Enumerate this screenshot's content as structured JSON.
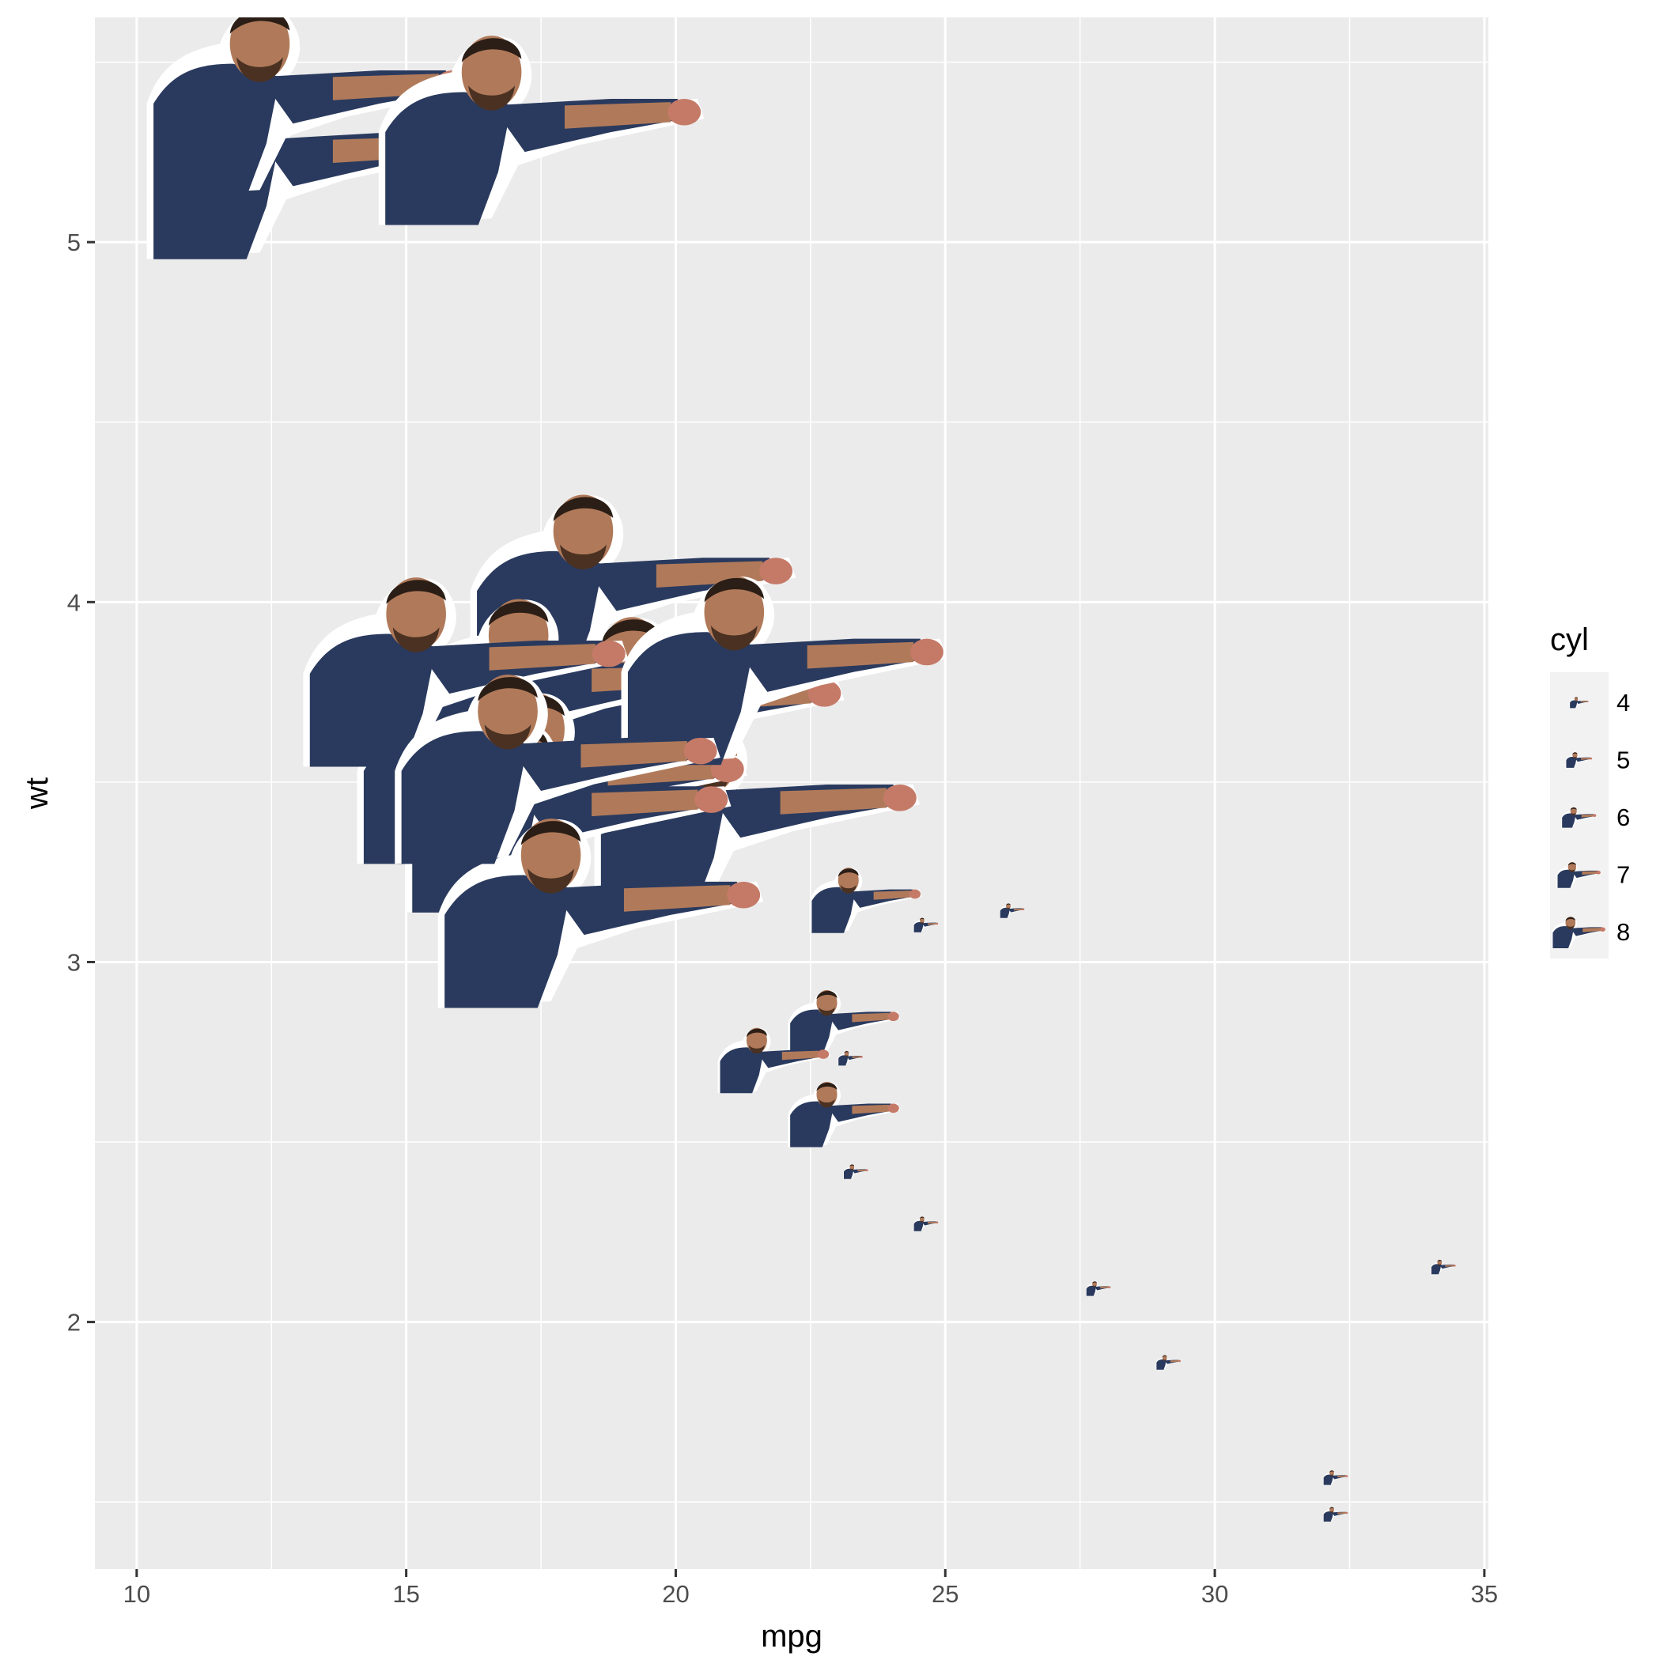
{
  "chart_data": {
    "type": "scatter",
    "title": "",
    "xlabel": "mpg",
    "ylabel": "wt",
    "xlim": [
      9.225,
      35.075
    ],
    "ylim": [
      1.31365,
      5.62435
    ],
    "x_ticks": [
      10,
      15,
      20,
      25,
      30,
      35
    ],
    "y_ticks": [
      2,
      3,
      4,
      5
    ],
    "x_tick_labels": [
      "10",
      "15",
      "20",
      "25",
      "30",
      "35"
    ],
    "y_tick_labels": [
      "2",
      "3",
      "4",
      "5"
    ],
    "grid": true,
    "legend": {
      "title": "cyl",
      "placement": "right",
      "entries": [
        "4",
        "5",
        "6",
        "7",
        "8"
      ],
      "sizes": [
        4,
        5,
        6,
        7,
        8
      ]
    },
    "marker": "photo of a bearded man in a blue shirt pointing right",
    "colors": {
      "panel": "#ebebeb",
      "grid": "#ffffff",
      "shirt": "#2a3a5e",
      "skin": "#b07a5a",
      "hair": "#2b1e16"
    },
    "points": [
      {
        "mpg": 21.0,
        "wt": 2.62,
        "cyl": 6
      },
      {
        "mpg": 21.0,
        "wt": 2.875,
        "cyl": 6
      },
      {
        "mpg": 22.8,
        "wt": 2.32,
        "cyl": 4
      },
      {
        "mpg": 21.4,
        "wt": 3.215,
        "cyl": 6
      },
      {
        "mpg": 18.7,
        "wt": 3.44,
        "cyl": 8
      },
      {
        "mpg": 18.1,
        "wt": 3.46,
        "cyl": 6
      },
      {
        "mpg": 14.3,
        "wt": 3.57,
        "cyl": 8
      },
      {
        "mpg": 24.4,
        "wt": 3.19,
        "cyl": 4
      },
      {
        "mpg": 22.8,
        "wt": 3.15,
        "cyl": 4
      },
      {
        "mpg": 19.2,
        "wt": 3.44,
        "cyl": 6
      },
      {
        "mpg": 17.8,
        "wt": 3.44,
        "cyl": 6
      },
      {
        "mpg": 16.4,
        "wt": 4.07,
        "cyl": 8
      },
      {
        "mpg": 17.3,
        "wt": 3.73,
        "cyl": 8
      },
      {
        "mpg": 15.2,
        "wt": 3.78,
        "cyl": 8
      },
      {
        "mpg": 10.4,
        "wt": 5.25,
        "cyl": 8
      },
      {
        "mpg": 10.4,
        "wt": 5.424,
        "cyl": 8
      },
      {
        "mpg": 14.7,
        "wt": 5.345,
        "cyl": 8
      },
      {
        "mpg": 32.4,
        "wt": 2.2,
        "cyl": 4
      },
      {
        "mpg": 30.4,
        "wt": 1.615,
        "cyl": 4
      },
      {
        "mpg": 33.9,
        "wt": 1.835,
        "cyl": 4
      },
      {
        "mpg": 21.5,
        "wt": 2.465,
        "cyl": 4
      },
      {
        "mpg": 15.5,
        "wt": 3.52,
        "cyl": 8
      },
      {
        "mpg": 15.2,
        "wt": 3.435,
        "cyl": 8
      },
      {
        "mpg": 13.3,
        "wt": 3.84,
        "cyl": 8
      },
      {
        "mpg": 19.2,
        "wt": 3.845,
        "cyl": 8
      },
      {
        "mpg": 27.3,
        "wt": 1.935,
        "cyl": 4
      },
      {
        "mpg": 26.0,
        "wt": 2.14,
        "cyl": 4
      },
      {
        "mpg": 30.4,
        "wt": 1.513,
        "cyl": 4
      },
      {
        "mpg": 15.8,
        "wt": 3.17,
        "cyl": 8
      },
      {
        "mpg": 19.7,
        "wt": 2.77,
        "cyl": 6
      },
      {
        "mpg": 15.0,
        "wt": 3.57,
        "cyl": 8
      },
      {
        "mpg": 21.4,
        "wt": 2.78,
        "cyl": 4
      }
    ]
  }
}
